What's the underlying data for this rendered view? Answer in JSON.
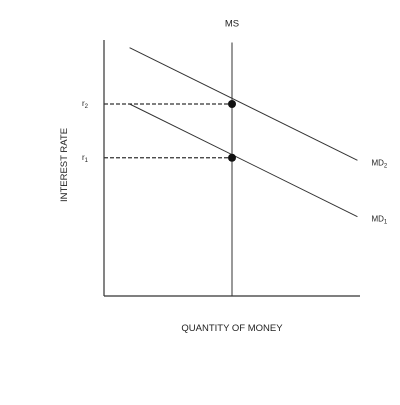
{
  "chart_data": {
    "type": "line",
    "xlabel": "QUANTITY OF MONEY",
    "ylabel": "INTEREST RATE",
    "xlim": [
      0,
      10
    ],
    "ylim": [
      0,
      10
    ],
    "grid": false,
    "y_ticks": [
      {
        "base": "r",
        "sub": "2",
        "value": 7.5
      },
      {
        "base": "r",
        "sub": "1",
        "value": 5.4
      }
    ],
    "supply": {
      "label": "MS",
      "x": 5.0,
      "y_range": [
        0,
        9.9
      ]
    },
    "series": [
      {
        "base": "MD",
        "sub": "2",
        "points": [
          [
            1.0,
            9.7
          ],
          [
            9.9,
            5.3
          ]
        ]
      },
      {
        "base": "MD",
        "sub": "1",
        "points": [
          [
            1.0,
            7.5
          ],
          [
            9.9,
            3.1
          ]
        ]
      }
    ],
    "equilibria": [
      {
        "x": 5.0,
        "y": 7.5
      },
      {
        "x": 5.0,
        "y": 5.4
      }
    ]
  }
}
